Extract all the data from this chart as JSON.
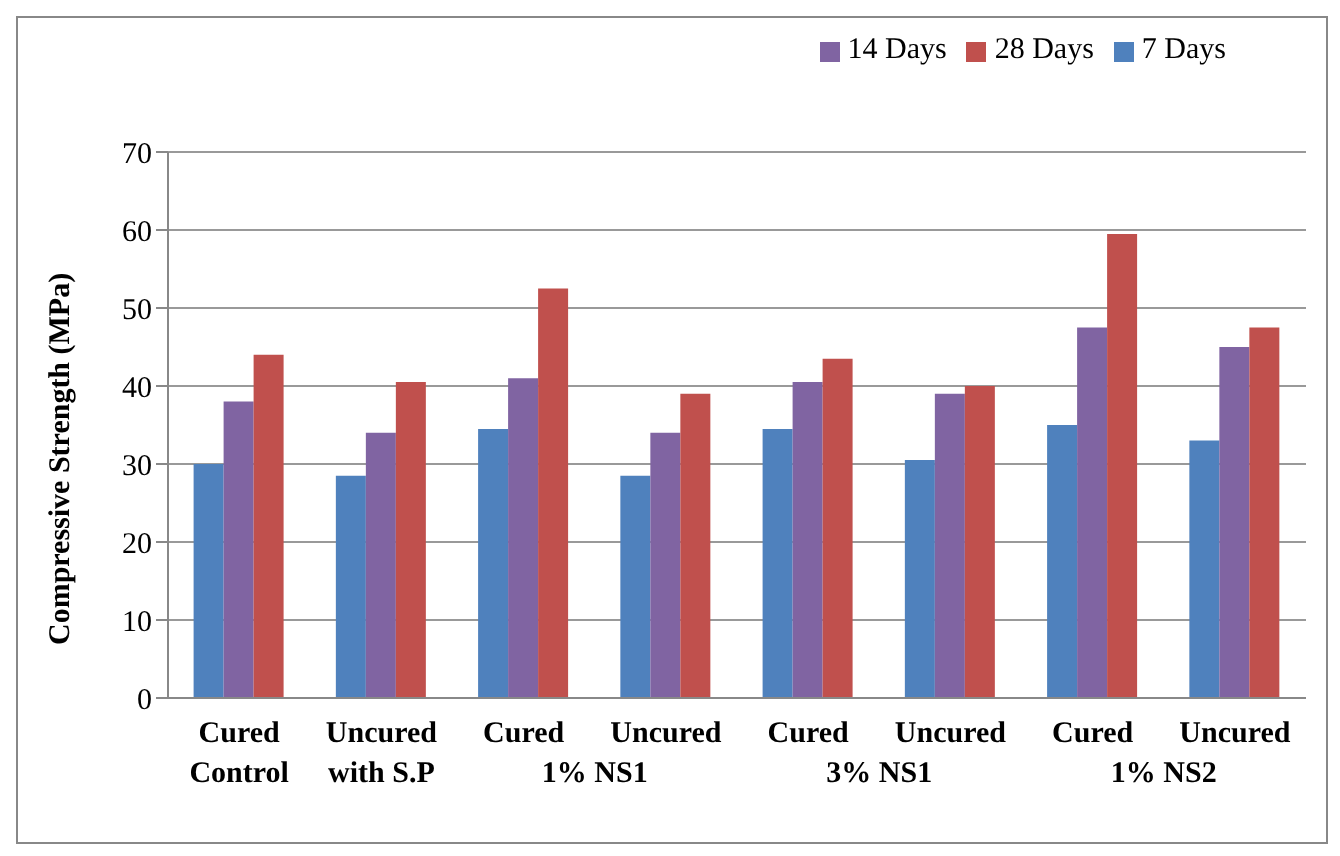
{
  "chart_data": {
    "type": "bar",
    "ylabel": "Compressive Strength (MPa)",
    "categories": [
      "Cured\nControl",
      "Uncured\nwith S.P",
      "Cured",
      "Uncured",
      "Cured",
      "Uncured",
      "Cured",
      "Uncured"
    ],
    "series": [
      {
        "name": "7 Days",
        "color": "#4f81bd",
        "values": [
          30,
          28.5,
          34.5,
          28.5,
          34.5,
          30.5,
          35,
          33
        ]
      },
      {
        "name": "14 Days",
        "color": "#8064a2",
        "values": [
          38,
          34,
          41,
          34,
          40.5,
          39,
          47.5,
          45
        ]
      },
      {
        "name": "28 Days",
        "color": "#c0504d",
        "values": [
          44,
          40.5,
          52.5,
          39,
          43.5,
          40,
          59.5,
          47.5
        ]
      }
    ],
    "annotations": [
      "1% NS1",
      "3% NS1",
      "1% NS2"
    ],
    "ylim": [
      0,
      70
    ],
    "yticks": [
      0,
      10,
      20,
      30,
      40,
      50,
      60,
      70
    ],
    "grid": "y",
    "legend": "top right"
  }
}
